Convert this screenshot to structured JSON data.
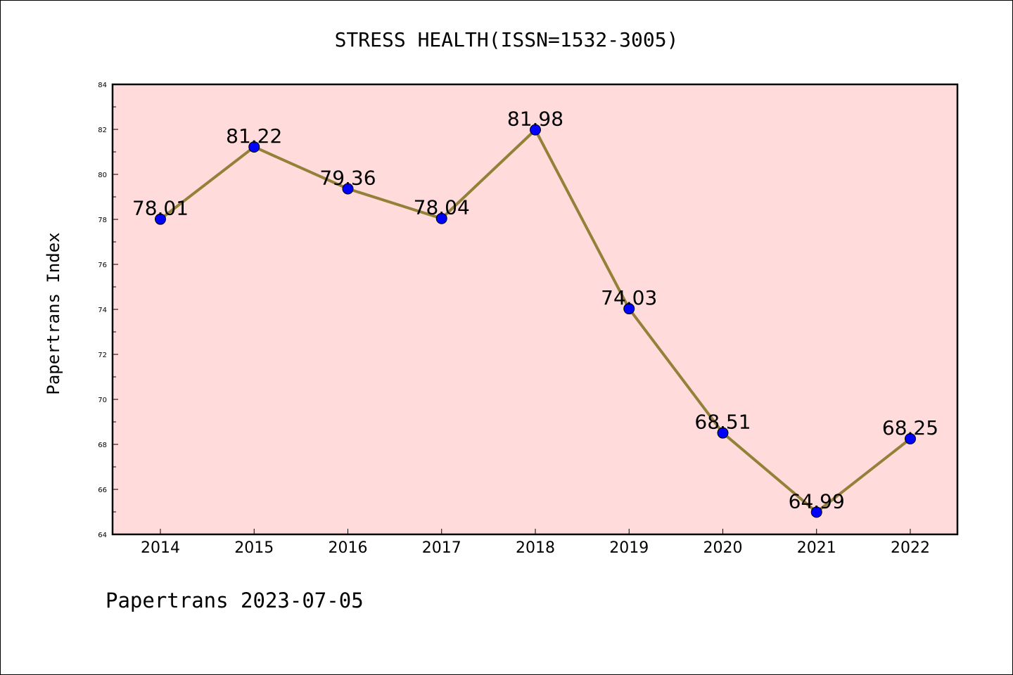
{
  "colors": {
    "plot_background": "#ffdcdb",
    "line": "#948139",
    "marker": "#0000ff",
    "axis": "#000000"
  },
  "chart_data": {
    "type": "line",
    "title": "STRESS HEALTH(ISSN=1532-3005)",
    "xlabel": "",
    "ylabel": "Papertrans Index",
    "categories": [
      "2014",
      "2015",
      "2016",
      "2017",
      "2018",
      "2019",
      "2020",
      "2021",
      "2022"
    ],
    "values": [
      78.01,
      81.22,
      79.36,
      78.04,
      81.98,
      74.03,
      68.51,
      64.99,
      68.25
    ],
    "data_labels": [
      "78.01",
      "81.22",
      "79.36",
      "78.04",
      "81.98",
      "74.03",
      "68.51",
      "64.99",
      "68.25"
    ],
    "ylim": [
      64,
      84
    ],
    "yticks": [
      64,
      66,
      68,
      70,
      72,
      74,
      76,
      78,
      80,
      82,
      84
    ],
    "ytick_labels": [
      "64",
      "66",
      "68",
      "70",
      "72",
      "74",
      "76",
      "78",
      "80",
      "82",
      "84"
    ],
    "grid": false,
    "legend": "none"
  },
  "footer": {
    "watermark": "Papertrans 2023-07-05"
  }
}
